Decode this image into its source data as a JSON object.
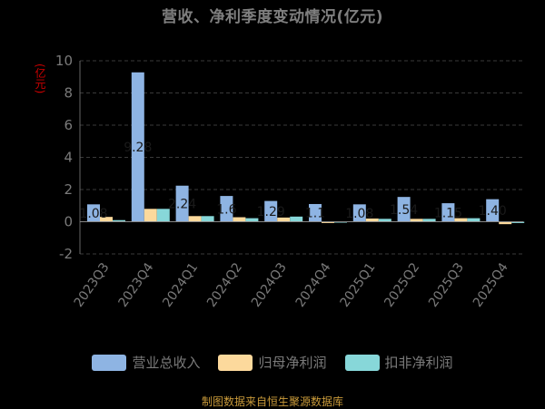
{
  "chart_data": {
    "type": "bar",
    "title": "营收、净利季度变动情况(亿元)",
    "ylabel": "(亿元)",
    "ylim": [
      -2,
      10
    ],
    "yticks": [
      -2,
      0,
      2,
      4,
      6,
      8,
      10
    ],
    "categories": [
      "2023Q3",
      "2023Q4",
      "2024Q1",
      "2024Q2",
      "2024Q3",
      "2024Q4",
      "2025Q1",
      "2025Q2",
      "2025Q3",
      "2025Q4"
    ],
    "series": [
      {
        "name": "营业总收入",
        "color": "#8eb4e3",
        "values": [
          1.08,
          9.28,
          2.24,
          1.6,
          1.29,
          1.1,
          1.08,
          1.54,
          1.15,
          1.4
        ]
      },
      {
        "name": "归母净利润",
        "color": "#fcd99c",
        "values": [
          0.3,
          0.8,
          0.35,
          0.28,
          0.26,
          -0.08,
          0.2,
          0.18,
          0.22,
          -0.15
        ]
      },
      {
        "name": "扣非净利润",
        "color": "#87d7d9",
        "values": [
          0.1,
          0.8,
          0.35,
          0.22,
          0.32,
          -0.05,
          0.18,
          0.18,
          0.22,
          -0.08
        ]
      }
    ],
    "data_labels": [
      "1.08",
      "9.28",
      "2.24",
      "1.6",
      "1.29",
      "1.1",
      "1.08",
      "1.54",
      "1.15",
      "1.40"
    ],
    "legend_position": "bottom"
  },
  "footer": "制图数据来自恒生聚源数据库"
}
